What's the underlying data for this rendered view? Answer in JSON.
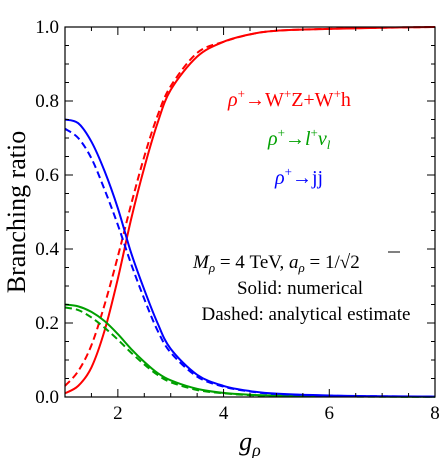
{
  "chart_data": {
    "type": "line",
    "xlabel": "g_ρ",
    "ylabel": "Branching ratio",
    "xlim": [
      1,
      8
    ],
    "ylim": [
      0,
      1.0
    ],
    "x_ticks": [
      2,
      4,
      6,
      8
    ],
    "x_tick_labels": [
      "2",
      "4",
      "6",
      "8"
    ],
    "y_ticks": [
      0.0,
      0.2,
      0.4,
      0.6,
      0.8,
      1.0
    ],
    "y_tick_labels": [
      "0.0",
      "0.2",
      "0.4",
      "0.6",
      "0.8",
      "1.0"
    ],
    "grid": false,
    "legend_position": "right",
    "series": [
      {
        "name": "ρ⁺→W⁺Z+W⁺h",
        "color": "#ff0000",
        "style": "solid",
        "x": [
          1.0,
          1.25,
          1.5,
          1.75,
          2.0,
          2.25,
          2.5,
          2.75,
          3.0,
          3.5,
          4.0,
          4.5,
          5.0,
          6.0,
          7.0,
          8.0
        ],
        "y": [
          0.01,
          0.03,
          0.08,
          0.18,
          0.32,
          0.48,
          0.62,
          0.74,
          0.83,
          0.92,
          0.96,
          0.98,
          0.99,
          0.995,
          0.998,
          1.0
        ]
      },
      {
        "name": "ρ⁺→W⁺Z+W⁺h",
        "color": "#ff0000",
        "style": "dashed",
        "x": [
          1.0,
          1.25,
          1.5,
          1.75,
          2.0,
          2.25,
          2.5,
          2.75,
          3.0,
          3.5,
          4.0,
          4.5,
          5.0,
          6.0,
          7.0,
          8.0
        ],
        "y": [
          0.03,
          0.07,
          0.14,
          0.25,
          0.38,
          0.52,
          0.65,
          0.76,
          0.84,
          0.93,
          0.96,
          0.98,
          0.99,
          0.995,
          0.998,
          1.0
        ]
      },
      {
        "name": "ρ⁺→l⁺ν_l",
        "color": "#00a000",
        "style": "solid",
        "x": [
          1.0,
          1.25,
          1.5,
          1.75,
          2.0,
          2.25,
          2.5,
          2.75,
          3.0,
          3.5,
          4.0,
          4.5,
          5.0,
          6.0,
          7.0,
          8.0
        ],
        "y": [
          0.25,
          0.245,
          0.23,
          0.205,
          0.17,
          0.13,
          0.095,
          0.065,
          0.045,
          0.022,
          0.011,
          0.006,
          0.004,
          0.002,
          0.001,
          0.0005
        ]
      },
      {
        "name": "ρ⁺→l⁺ν_l",
        "color": "#00a000",
        "style": "dashed",
        "x": [
          1.0,
          1.25,
          1.5,
          1.75,
          2.0,
          2.25,
          2.5,
          2.75,
          3.0,
          3.5,
          4.0,
          4.5,
          5.0,
          6.0,
          7.0,
          8.0
        ],
        "y": [
          0.242,
          0.235,
          0.215,
          0.187,
          0.155,
          0.12,
          0.088,
          0.06,
          0.04,
          0.019,
          0.01,
          0.005,
          0.003,
          0.0015,
          0.001,
          0.0005
        ]
      },
      {
        "name": "ρ⁺→jj",
        "color": "#0000ff",
        "style": "solid",
        "x": [
          1.0,
          1.25,
          1.5,
          1.75,
          2.0,
          2.25,
          2.5,
          2.75,
          3.0,
          3.5,
          4.0,
          4.5,
          5.0,
          6.0,
          7.0,
          8.0
        ],
        "y": [
          0.75,
          0.74,
          0.69,
          0.61,
          0.51,
          0.39,
          0.29,
          0.2,
          0.13,
          0.06,
          0.03,
          0.016,
          0.009,
          0.004,
          0.002,
          0.001
        ]
      },
      {
        "name": "ρ⁺→jj",
        "color": "#0000ff",
        "style": "dashed",
        "x": [
          1.0,
          1.25,
          1.5,
          1.75,
          2.0,
          2.25,
          2.5,
          2.75,
          3.0,
          3.5,
          4.0,
          4.5,
          5.0,
          6.0,
          7.0,
          8.0
        ],
        "y": [
          0.725,
          0.7,
          0.645,
          0.56,
          0.465,
          0.36,
          0.265,
          0.18,
          0.12,
          0.055,
          0.028,
          0.015,
          0.008,
          0.0035,
          0.0018,
          0.001
        ]
      }
    ],
    "legend": [
      {
        "label_prefix": "ρ",
        "sup1": "+",
        "mid": "→W",
        "sup2": "+",
        "mid2": "Z+W",
        "sup3": "+",
        "tail": "h",
        "color": "#ff0000"
      },
      {
        "label_prefix": "ρ",
        "sup1": "+",
        "mid": "→l",
        "sup2": "+",
        "mid2": "ν",
        "sub": "l",
        "color": "#00a000"
      },
      {
        "label_prefix": "ρ",
        "sup1": "+",
        "mid": "→jj",
        "color": "#0000ff"
      }
    ],
    "annotations": {
      "line1_lhs_main": "M",
      "line1_lhs_sub": "ρ",
      "line1_eq": " = 4 TeV, ",
      "line1_a": "a",
      "line1_a_sub": "ρ",
      "line1_eq2": " = 1/",
      "line1_sqrt_arg": "2",
      "line2": "Solid: numerical",
      "line3": "Dashed: analytical estimate"
    }
  }
}
